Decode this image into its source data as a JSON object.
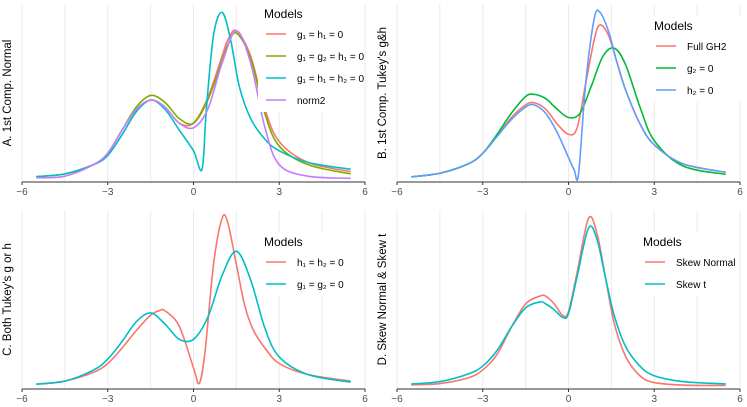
{
  "chart_data": [
    {
      "type": "line",
      "ylabel": "A. 1st Comp. Normal",
      "xlim": [
        -6,
        6
      ],
      "xticks": [
        -6,
        -3,
        0,
        3,
        6
      ],
      "grid": true,
      "legend": {
        "title": "Models",
        "entries": [
          {
            "label": "g₁ = h₁ = 0",
            "color": "#F8766D"
          },
          {
            "label": "g₁ = g₂ = h₁ = 0",
            "color": "#7CAE00"
          },
          {
            "label": "g₁ = h₁ = h₂ = 0",
            "color": "#00BFC4"
          },
          {
            "label": "norm2",
            "color": "#C77CFF"
          }
        ]
      },
      "series": [
        {
          "name": "g₁ = h₁ = 0",
          "color": "#F8766D",
          "x": [
            -5.5,
            -4.5,
            -3.5,
            -3,
            -2.5,
            -2,
            -1.5,
            -1,
            -0.5,
            0,
            0.5,
            1,
            1.2,
            1.5,
            2,
            2.5,
            3,
            4,
            5.5
          ],
          "y": [
            0.008,
            0.02,
            0.06,
            0.1,
            0.19,
            0.29,
            0.34,
            0.31,
            0.24,
            0.24,
            0.35,
            0.53,
            0.6,
            0.64,
            0.53,
            0.3,
            0.16,
            0.07,
            0.03
          ]
        },
        {
          "name": "g₁ = g₂ = h₁ = 0",
          "color": "#7CAE00",
          "x": [
            -5.5,
            -4.5,
            -3.5,
            -3,
            -2.5,
            -2,
            -1.5,
            -1,
            -0.5,
            0,
            0.5,
            1,
            1.2,
            1.5,
            2,
            2.5,
            3,
            4,
            5.5
          ],
          "y": [
            0.008,
            0.02,
            0.06,
            0.11,
            0.21,
            0.31,
            0.36,
            0.33,
            0.26,
            0.24,
            0.34,
            0.51,
            0.58,
            0.63,
            0.52,
            0.28,
            0.14,
            0.06,
            0.02
          ]
        },
        {
          "name": "g₁ = h₁ = h₂ = 0",
          "color": "#00BFC4",
          "x": [
            -5.5,
            -4.5,
            -3.5,
            -3,
            -2.5,
            -2,
            -1.5,
            -1,
            -0.5,
            0,
            0.3,
            0.45,
            0.7,
            1,
            1.3,
            1.6,
            2,
            2.5,
            3,
            4,
            5.5
          ],
          "y": [
            0.008,
            0.02,
            0.06,
            0.1,
            0.19,
            0.29,
            0.34,
            0.3,
            0.21,
            0.12,
            0.04,
            0.3,
            0.62,
            0.72,
            0.6,
            0.4,
            0.26,
            0.17,
            0.12,
            0.07,
            0.04
          ]
        },
        {
          "name": "norm2",
          "color": "#C77CFF",
          "x": [
            -5.5,
            -4.5,
            -3.5,
            -3,
            -2.5,
            -2,
            -1.5,
            -1,
            -0.5,
            0,
            0.5,
            1,
            1.5,
            2,
            2.5,
            3,
            4,
            5.5
          ],
          "y": [
            0.003,
            0.01,
            0.06,
            0.11,
            0.21,
            0.3,
            0.34,
            0.31,
            0.24,
            0.22,
            0.3,
            0.5,
            0.64,
            0.5,
            0.22,
            0.06,
            0.01,
            0.001
          ]
        }
      ]
    },
    {
      "type": "line",
      "ylabel": "B. 1st Comp. Tukey's g&h",
      "xlim": [
        -6,
        6
      ],
      "xticks": [
        -6,
        -3,
        0,
        3,
        6
      ],
      "grid": true,
      "legend": {
        "title": "Models",
        "entries": [
          {
            "label": "Full GH2",
            "color": "#F8766D"
          },
          {
            "label": "g₂ = 0",
            "color": "#00BA38"
          },
          {
            "label": "h₂ = 0",
            "color": "#619CFF"
          }
        ]
      },
      "series": [
        {
          "name": "Full GH2",
          "color": "#F8766D",
          "x": [
            -5.5,
            -4.5,
            -3.5,
            -3,
            -2.5,
            -2,
            -1.5,
            -1.2,
            -0.8,
            -0.4,
            0,
            0.3,
            0.6,
            0.9,
            1.1,
            1.4,
            1.7,
            2,
            2.5,
            3,
            4,
            5.5
          ],
          "y": [
            0.008,
            0.025,
            0.07,
            0.12,
            0.2,
            0.29,
            0.35,
            0.36,
            0.33,
            0.26,
            0.21,
            0.24,
            0.45,
            0.66,
            0.73,
            0.68,
            0.55,
            0.42,
            0.26,
            0.16,
            0.07,
            0.03
          ]
        },
        {
          "name": "g₂ = 0",
          "color": "#00BA38",
          "x": [
            -5.5,
            -4.5,
            -3.5,
            -3,
            -2.5,
            -2,
            -1.5,
            -1.2,
            -0.8,
            -0.4,
            0,
            0.4,
            0.8,
            1.2,
            1.6,
            2,
            2.5,
            3,
            4,
            5.5
          ],
          "y": [
            0.008,
            0.025,
            0.07,
            0.12,
            0.21,
            0.31,
            0.39,
            0.4,
            0.38,
            0.33,
            0.29,
            0.31,
            0.44,
            0.58,
            0.62,
            0.54,
            0.34,
            0.18,
            0.06,
            0.02
          ]
        },
        {
          "name": "h₂ = 0",
          "color": "#619CFF",
          "x": [
            -5.5,
            -4.5,
            -3.5,
            -3,
            -2.5,
            -2,
            -1.5,
            -1.2,
            -0.8,
            -0.4,
            0,
            0.2,
            0.35,
            0.6,
            0.9,
            1.1,
            1.4,
            1.7,
            2,
            2.5,
            3,
            4,
            5.5
          ],
          "y": [
            0.008,
            0.025,
            0.07,
            0.12,
            0.2,
            0.28,
            0.34,
            0.35,
            0.31,
            0.22,
            0.1,
            0.04,
            0.02,
            0.45,
            0.76,
            0.79,
            0.7,
            0.55,
            0.42,
            0.26,
            0.16,
            0.07,
            0.03
          ]
        }
      ]
    },
    {
      "type": "line",
      "ylabel": "C. Both Tukey's g or h",
      "xlim": [
        -6,
        6
      ],
      "xticks": [
        -6,
        -3,
        0,
        3,
        6
      ],
      "grid": true,
      "legend": {
        "title": "Models",
        "entries": [
          {
            "label": "h₁ = h₂ = 0",
            "color": "#F8766D"
          },
          {
            "label": "g₁ = g₂ = 0",
            "color": "#00BFC4"
          }
        ]
      },
      "series": [
        {
          "name": "h₁ = h₂ = 0",
          "color": "#F8766D",
          "x": [
            -5.5,
            -4.5,
            -3.5,
            -3,
            -2.5,
            -2,
            -1.5,
            -1.2,
            -1,
            -0.5,
            0,
            0.2,
            0.4,
            0.7,
            1,
            1.2,
            1.5,
            1.8,
            2.1,
            2.5,
            3,
            4,
            5.5
          ],
          "y": [
            0.006,
            0.02,
            0.06,
            0.1,
            0.17,
            0.25,
            0.32,
            0.34,
            0.34,
            0.27,
            0.08,
            0.01,
            0.15,
            0.55,
            0.76,
            0.74,
            0.55,
            0.36,
            0.25,
            0.17,
            0.1,
            0.05,
            0.02
          ]
        },
        {
          "name": "g₁ = g₂ = 0",
          "color": "#00BFC4",
          "x": [
            -5.5,
            -4.5,
            -3.5,
            -3,
            -2.5,
            -2,
            -1.5,
            -1,
            -0.5,
            0,
            0.5,
            1,
            1.5,
            2,
            2.5,
            3,
            4,
            5.5
          ],
          "y": [
            0.006,
            0.02,
            0.07,
            0.12,
            0.2,
            0.29,
            0.33,
            0.28,
            0.21,
            0.21,
            0.31,
            0.5,
            0.61,
            0.48,
            0.26,
            0.13,
            0.05,
            0.015
          ]
        }
      ]
    },
    {
      "type": "line",
      "ylabel": "D. Skew Normal & Skew t",
      "xlim": [
        -6,
        6
      ],
      "xticks": [
        -6,
        -3,
        0,
        3,
        6
      ],
      "grid": true,
      "legend": {
        "title": "Models",
        "entries": [
          {
            "label": "Skew Normal",
            "color": "#F8766D"
          },
          {
            "label": "Skew t",
            "color": "#00BFC4"
          }
        ]
      },
      "series": [
        {
          "name": "Skew Normal",
          "color": "#F8766D",
          "x": [
            -5.5,
            -4.5,
            -3.5,
            -3,
            -2.5,
            -2,
            -1.5,
            -1,
            -0.8,
            -0.5,
            -0.2,
            0,
            0.3,
            0.7,
            1,
            1.3,
            1.6,
            2,
            2.5,
            3,
            4,
            5.5
          ],
          "y": [
            0.003,
            0.01,
            0.04,
            0.08,
            0.16,
            0.3,
            0.42,
            0.46,
            0.46,
            0.42,
            0.36,
            0.38,
            0.58,
            0.86,
            0.78,
            0.55,
            0.32,
            0.15,
            0.05,
            0.015,
            0.002,
            0.0
          ]
        },
        {
          "name": "Skew t",
          "color": "#00BFC4",
          "x": [
            -5.5,
            -4.5,
            -3.5,
            -3,
            -2.5,
            -2,
            -1.5,
            -1,
            -0.8,
            -0.5,
            -0.2,
            0,
            0.3,
            0.7,
            1,
            1.3,
            1.6,
            2,
            2.5,
            3,
            4,
            5.5
          ],
          "y": [
            0.008,
            0.02,
            0.06,
            0.1,
            0.18,
            0.3,
            0.4,
            0.43,
            0.42,
            0.39,
            0.35,
            0.37,
            0.56,
            0.81,
            0.75,
            0.55,
            0.36,
            0.2,
            0.1,
            0.05,
            0.02,
            0.008
          ]
        }
      ]
    }
  ]
}
